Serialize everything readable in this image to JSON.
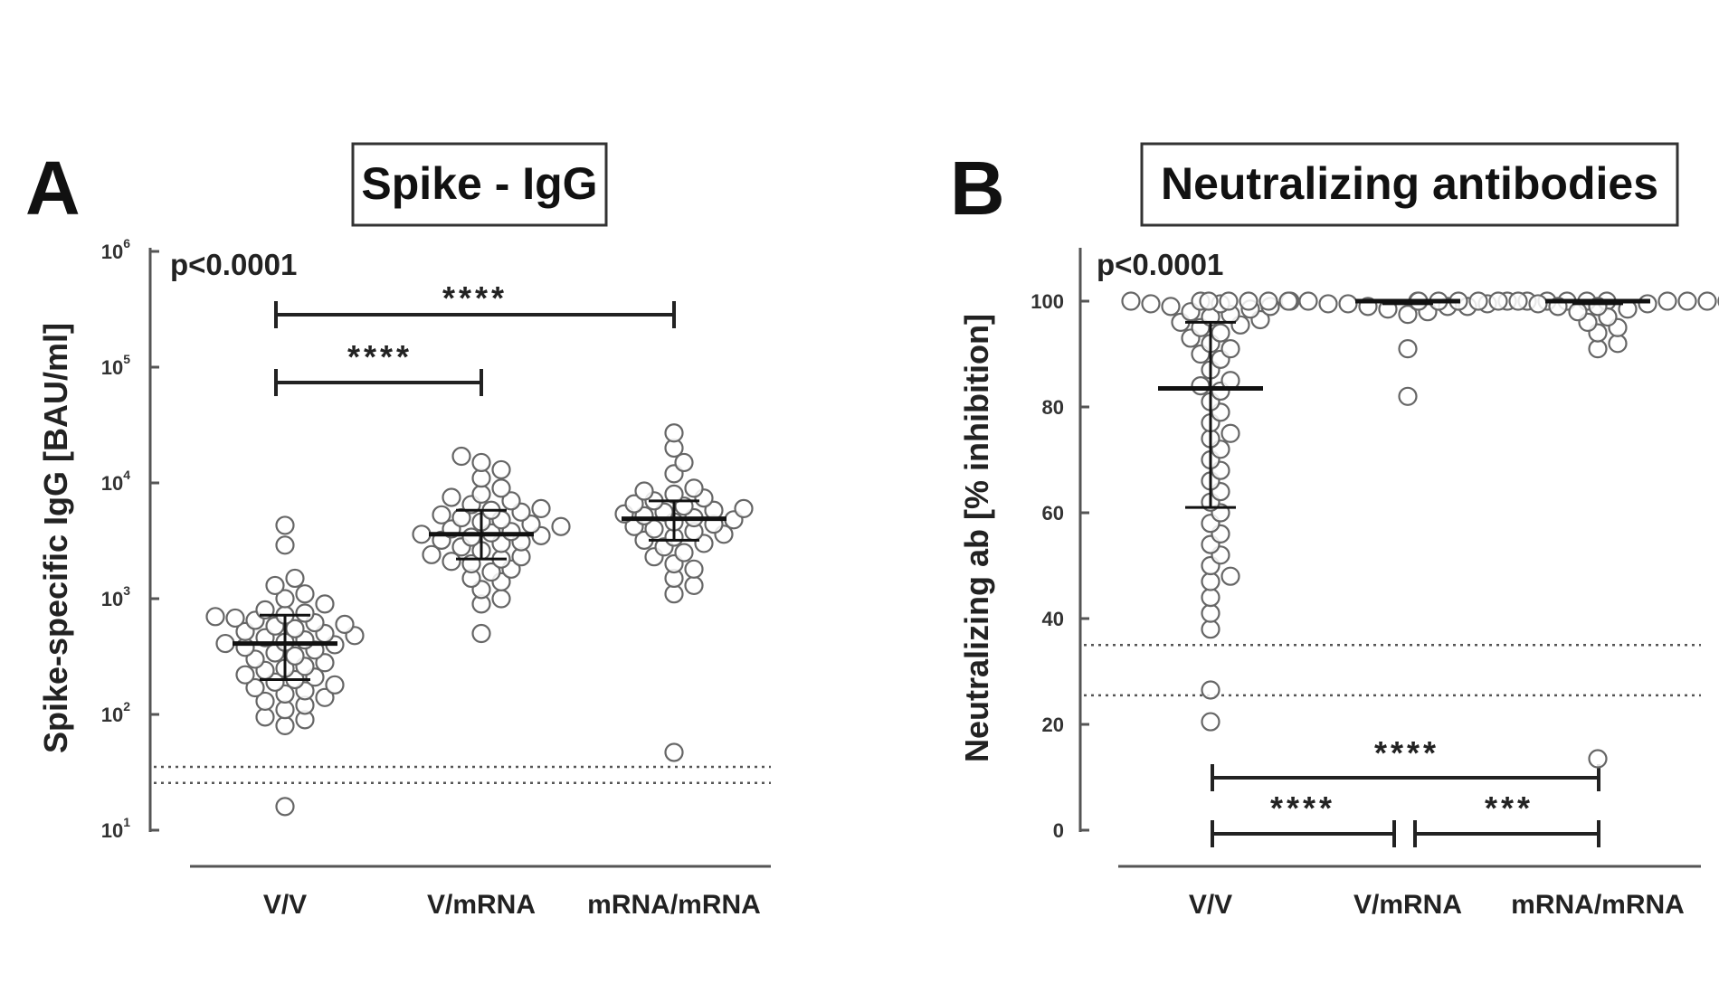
{
  "chart_data": [
    {
      "type": "scatter",
      "panel": "A",
      "title": "Spike - IgG",
      "p_value": "p<0.0001",
      "ylabel": "Spike-specific IgG [BAU/ml]",
      "yscale": "log",
      "ylim": [
        10,
        1000000
      ],
      "yticks": [
        {
          "base": "10",
          "exp": "1"
        },
        {
          "base": "10",
          "exp": "2"
        },
        {
          "base": "10",
          "exp": "3"
        },
        {
          "base": "10",
          "exp": "4"
        },
        {
          "base": "10",
          "exp": "5"
        },
        {
          "base": "10",
          "exp": "6"
        }
      ],
      "categories": [
        "V/V",
        "V/mRNA",
        "mRNA/mRNA"
      ],
      "thresholds": [
        35.2,
        25.6
      ],
      "summary": [
        {
          "category": "V/V",
          "median": 410,
          "q1": 200,
          "q3": 720
        },
        {
          "category": "V/mRNA",
          "median": 3600,
          "q1": 2200,
          "q3": 5800
        },
        {
          "category": "mRNA/mRNA",
          "median": 4900,
          "q1": 3200,
          "q3": 7000
        }
      ],
      "series": [
        {
          "category": "V/V",
          "values": [
            16,
            80,
            90,
            95,
            110,
            120,
            130,
            140,
            150,
            160,
            170,
            180,
            190,
            200,
            210,
            220,
            240,
            250,
            260,
            280,
            300,
            320,
            340,
            360,
            380,
            400,
            410,
            420,
            440,
            460,
            480,
            500,
            520,
            550,
            580,
            600,
            620,
            650,
            680,
            700,
            720,
            750,
            800,
            900,
            1000,
            1100,
            1300,
            1500,
            2900,
            4300
          ]
        },
        {
          "category": "V/mRNA",
          "values": [
            500,
            900,
            1000,
            1200,
            1400,
            1500,
            1700,
            1800,
            2000,
            2100,
            2200,
            2300,
            2400,
            2600,
            2800,
            3000,
            3100,
            3200,
            3400,
            3500,
            3600,
            3700,
            3800,
            4000,
            4200,
            4400,
            4600,
            4800,
            5000,
            5300,
            5600,
            5800,
            6000,
            6500,
            7000,
            7500,
            8000,
            9000,
            11000,
            13000,
            15000,
            17000
          ]
        },
        {
          "category": "mRNA/mRNA",
          "values": [
            47,
            1100,
            1300,
            1500,
            1800,
            2000,
            2300,
            2500,
            2800,
            3000,
            3200,
            3400,
            3600,
            3800,
            4000,
            4200,
            4400,
            4600,
            4800,
            5000,
            5200,
            5400,
            5600,
            5800,
            6000,
            6300,
            6600,
            7000,
            7400,
            8000,
            8500,
            9000,
            12000,
            15000,
            20000,
            27000
          ]
        }
      ],
      "comparisons": [
        {
          "from": "V/V",
          "to": "V/mRNA",
          "label": "****"
        },
        {
          "from": "V/V",
          "to": "mRNA/mRNA",
          "label": "****"
        }
      ]
    },
    {
      "type": "scatter",
      "panel": "B",
      "title": "Neutralizing antibodies",
      "p_value": "p<0.0001",
      "ylabel": "Neutralizing ab [% inhibition]",
      "yscale": "linear",
      "ylim": [
        0,
        110
      ],
      "yticks": [
        "0",
        "20",
        "40",
        "60",
        "80",
        "100"
      ],
      "categories": [
        "V/V",
        "V/mRNA",
        "mRNA/mRNA"
      ],
      "thresholds": [
        35,
        25.5
      ],
      "summary": [
        {
          "category": "V/V",
          "median": 83.5,
          "q1": 61,
          "q3": 96
        },
        {
          "category": "V/mRNA",
          "median": 100,
          "q1": 99.5,
          "q3": 100
        },
        {
          "category": "mRNA/mRNA",
          "median": 100,
          "q1": 99.5,
          "q3": 100
        }
      ],
      "series": [
        {
          "category": "V/V",
          "values": [
            20.5,
            26.5,
            38,
            41,
            44,
            47,
            48,
            50,
            52,
            54,
            56,
            58,
            60,
            62,
            64,
            66,
            68,
            70,
            72,
            74,
            75,
            77,
            79,
            81,
            83,
            84,
            85,
            87,
            89,
            90,
            91,
            92,
            93,
            94,
            95,
            95.5,
            96,
            96.5,
            97,
            97.5,
            98,
            98.5,
            99,
            99,
            99.5,
            99.5,
            100,
            100,
            100
          ]
        },
        {
          "category": "V/mRNA",
          "values": [
            82,
            91,
            97.5,
            98,
            98.5,
            99,
            99,
            99,
            99.5,
            99.5,
            99.5,
            100,
            100,
            100,
            100,
            100,
            100,
            100,
            100,
            100,
            100,
            100,
            100,
            100
          ]
        },
        {
          "category": "mRNA/mRNA",
          "values": [
            13.5,
            91,
            92,
            94,
            95,
            96,
            97,
            98,
            98.5,
            99,
            99,
            99.5,
            99.5,
            100,
            100,
            100,
            100,
            100,
            100,
            100,
            100,
            100,
            100,
            100,
            100
          ]
        }
      ],
      "comparisons": [
        {
          "from": "V/V",
          "to": "mRNA/mRNA",
          "label": "****"
        },
        {
          "from": "V/V",
          "to": "V/mRNA",
          "label": "****"
        },
        {
          "from": "V/mRNA",
          "to": "mRNA/mRNA",
          "label": "***"
        }
      ]
    }
  ]
}
